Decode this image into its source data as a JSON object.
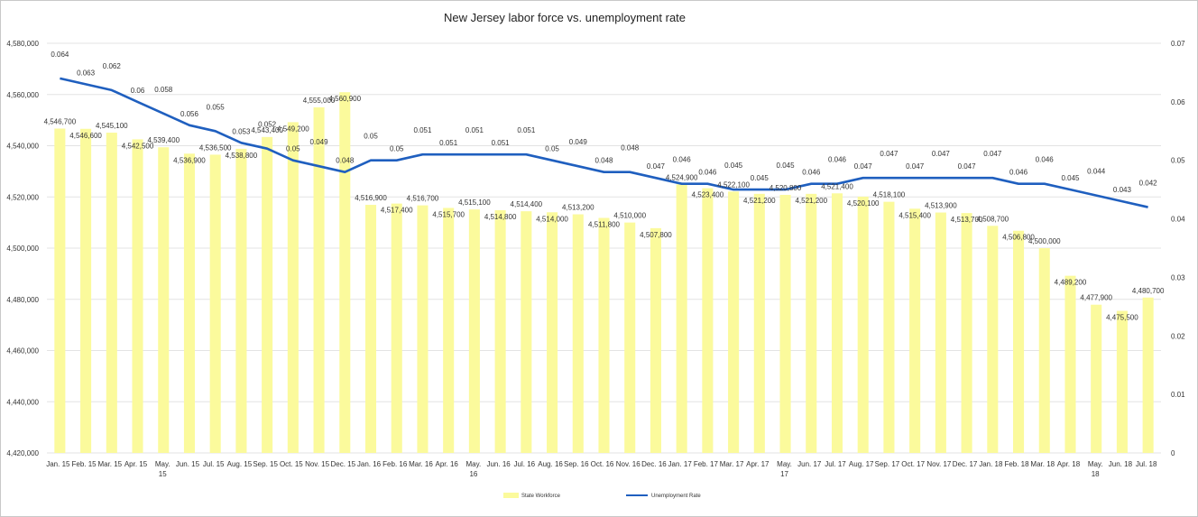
{
  "chart_data": {
    "type": "bar",
    "title": "New Jersey labor force vs. unemployment rate",
    "categories": [
      "Jan. 15",
      "Feb. 15",
      "Mar. 15",
      "Apr. 15",
      "May. 15",
      "Jun. 15",
      "Jul. 15",
      "Aug. 15",
      "Sep. 15",
      "Oct. 15",
      "Nov. 15",
      "Dec. 15",
      "Jan. 16",
      "Feb. 16",
      "Mar. 16",
      "Apr. 16",
      "May. 16",
      "Jun. 16",
      "Jul. 16",
      "Aug. 16",
      "Sep. 16",
      "Oct. 16",
      "Nov. 16",
      "Dec. 16",
      "Jan. 17",
      "Feb. 17",
      "Mar. 17",
      "Apr. 17",
      "May. 17",
      "Jun. 17",
      "Jul. 17",
      "Aug. 17",
      "Sep. 17",
      "Oct. 17",
      "Nov. 17",
      "Dec. 17",
      "Jan. 18",
      "Feb. 18",
      "Mar. 18",
      "Apr. 18",
      "May. 18",
      "Jun. 18",
      "Jul. 18"
    ],
    "series": [
      {
        "name": "State Workforce",
        "type": "bar",
        "axis": "left",
        "color": "#fbfa9c",
        "values": [
          4546700,
          4546600,
          4545100,
          4542500,
          4539400,
          4536900,
          4536500,
          4538800,
          4543400,
          4549200,
          4555000,
          4560900,
          4516900,
          4517400,
          4516700,
          4515700,
          4515100,
          4514800,
          4514400,
          4514000,
          4513200,
          4511800,
          4510000,
          4507800,
          4524900,
          4523400,
          4522100,
          4521200,
          4520800,
          4521200,
          4521400,
          4520100,
          4518100,
          4515400,
          4513900,
          4513700,
          4508700,
          4506800,
          4500000,
          4489200,
          4477900,
          4475500,
          4480700
        ],
        "labels": [
          "4,546,700",
          "4,546,600",
          "4,545,100",
          "4,542,500",
          "4,539,400",
          "4,536,900",
          "4,536,500",
          "4,538,800",
          "4,543,400",
          "4,549,200",
          "4,555,000",
          "4,560,900",
          "4,516,900",
          "4,517,400",
          "4,516,700",
          "4,515,700",
          "4,515,100",
          "4,514,800",
          "4,514,400",
          "4,514,000",
          "4,513,200",
          "4,511,800",
          "4,510,000",
          "4,507,800",
          "4,524,900",
          "4,523,400",
          "4,522,100",
          "4,521,200",
          "4,520,800",
          "4,521,200",
          "4,521,400",
          "4,520,100",
          "4,518,100",
          "4,515,400",
          "4,513,900",
          "4,513,700",
          "4,508,700",
          "4,506,800",
          "4,500,000",
          "4,489,200",
          "4,477,900",
          "4,475,500",
          "4,480,700"
        ]
      },
      {
        "name": "Unemployment Rate",
        "type": "line",
        "axis": "right",
        "color": "#1f5fbf",
        "values": [
          0.064,
          0.063,
          0.062,
          0.06,
          0.058,
          0.056,
          0.055,
          0.053,
          0.052,
          0.05,
          0.049,
          0.048,
          0.05,
          0.05,
          0.051,
          0.051,
          0.051,
          0.051,
          0.051,
          0.05,
          0.049,
          0.048,
          0.048,
          0.047,
          0.046,
          0.046,
          0.045,
          0.045,
          0.045,
          0.046,
          0.046,
          0.047,
          0.047,
          0.047,
          0.047,
          0.047,
          0.047,
          0.046,
          0.046,
          0.045,
          0.044,
          0.043,
          0.042
        ],
        "labels": [
          "0.064",
          "0.063",
          "0.062",
          "0.06",
          "0.058",
          "0.056",
          "0.055",
          "0.053",
          "0.052",
          "0.05",
          "0.049",
          "0.048",
          "0.05",
          "0.05",
          "0.051",
          "0.051",
          "0.051",
          "0.051",
          "0.051",
          "0.05",
          "0.049",
          "0.048",
          "0.048",
          "0.047",
          "0.046",
          "0.046",
          "0.045",
          "0.045",
          "0.045",
          "0.046",
          "0.046",
          "0.047",
          "0.047",
          "0.047",
          "0.047",
          "0.047",
          "0.047",
          "0.046",
          "0.046",
          "0.045",
          "0.044",
          "0.043",
          "0.042"
        ]
      }
    ],
    "left_axis": {
      "ylim": [
        4420000,
        4580000
      ],
      "ticks": [
        4420000,
        4440000,
        4460000,
        4480000,
        4500000,
        4520000,
        4540000,
        4560000,
        4580000
      ],
      "tick_labels": [
        "4,420,000",
        "4,440,000",
        "4,460,000",
        "4,480,000",
        "4,500,000",
        "4,520,000",
        "4,540,000",
        "4,560,000",
        "4,580,000"
      ]
    },
    "right_axis": {
      "ylim": [
        0,
        0.07
      ],
      "ticks": [
        0,
        0.01,
        0.02,
        0.03,
        0.04,
        0.05,
        0.06,
        0.07
      ],
      "tick_labels": [
        "0",
        "0.01",
        "0.02",
        "0.03",
        "0.04",
        "0.05",
        "0.06",
        "0.07"
      ]
    },
    "grid": true,
    "legend": {
      "position": "bottom"
    }
  }
}
